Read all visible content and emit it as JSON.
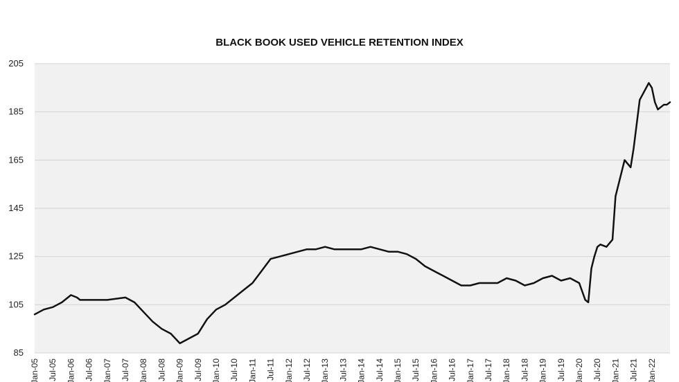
{
  "chart_data": {
    "type": "line",
    "title": "BLACK BOOK USED VEHICLE RETENTION INDEX",
    "xlabel": "",
    "ylabel": "",
    "ylim": [
      85,
      205
    ],
    "yticks": [
      85,
      105,
      125,
      145,
      165,
      185,
      205
    ],
    "ytick_labels": [
      "85",
      "105",
      "125",
      "145",
      "165",
      "185",
      "205"
    ],
    "grid": true,
    "legend": "none",
    "colors": {
      "line": "#111111",
      "plot_bg": "#f1f1f1",
      "grid": "#d4d4d4"
    },
    "xtick_labels": [
      "Jan-05",
      "Jul-05",
      "Jan-06",
      "Jul-06",
      "Jan-07",
      "Jul-07",
      "Jan-08",
      "Jul-08",
      "Jan-09",
      "Jul-09",
      "Jan-10",
      "Jul-10",
      "Jan-11",
      "Jul-11",
      "Jan-12",
      "Jul-12",
      "Jan-13",
      "Jul-13",
      "Jan-14",
      "Jul-14",
      "Jan-15",
      "Jul-15",
      "Jan-16",
      "Jul-16",
      "Jan-17",
      "Jul-17",
      "Jan-18",
      "Jul-18",
      "Jan-19",
      "Jul-19",
      "Jan-20",
      "Jul-20",
      "Jan-21",
      "Jul-21",
      "Jan-22"
    ],
    "series": [
      {
        "x": [
          "Jan-05",
          "Apr-05",
          "Jul-05",
          "Oct-05",
          "Jan-06",
          "Mar-06",
          "Apr-06",
          "Jul-06",
          "Oct-06",
          "Jan-07",
          "Jul-07",
          "Oct-07",
          "Jan-08",
          "Apr-08",
          "Jul-08",
          "Oct-08",
          "Jan-09",
          "Apr-09",
          "Jul-09",
          "Oct-09",
          "Jan-10",
          "Apr-10",
          "Jul-10",
          "Oct-10",
          "Jan-11",
          "Apr-11",
          "Jul-11",
          "Oct-11",
          "Jan-12",
          "Apr-12",
          "Jul-12",
          "Oct-12",
          "Jan-13",
          "Apr-13",
          "Jul-13",
          "Oct-13",
          "Jan-14",
          "Apr-14",
          "Jul-14",
          "Oct-14",
          "Jan-15",
          "Apr-15",
          "Jul-15",
          "Oct-15",
          "Jan-16",
          "Apr-16",
          "Jul-16",
          "Oct-16",
          "Jan-17",
          "Apr-17",
          "Jul-17",
          "Oct-17",
          "Jan-18",
          "Apr-18",
          "Jul-18",
          "Oct-18",
          "Jan-19",
          "Apr-19",
          "Jul-19",
          "Oct-19",
          "Jan-20",
          "Mar-20",
          "Apr-20",
          "May-20",
          "Jun-20",
          "Jul-20",
          "Aug-20",
          "Oct-20",
          "Dec-20",
          "Jan-21",
          "Apr-21",
          "Jun-21",
          "Jul-21",
          "Sep-21",
          "Dec-21",
          "Jan-22",
          "Feb-22",
          "Mar-22",
          "May-22",
          "Jun-22",
          "Jul-22"
        ],
        "y": [
          101,
          103,
          104,
          106,
          109,
          108,
          107,
          107,
          107,
          107,
          108,
          106,
          102,
          98,
          95,
          93,
          89,
          91,
          93,
          99,
          103,
          105,
          108,
          111,
          114,
          119,
          124,
          125,
          126,
          127,
          128,
          128,
          129,
          128,
          128,
          128,
          128,
          129,
          128,
          127,
          127,
          126,
          124,
          121,
          119,
          117,
          115,
          113,
          113,
          114,
          114,
          114,
          116,
          115,
          113,
          114,
          116,
          117,
          115,
          116,
          114,
          107,
          106,
          120,
          125,
          129,
          130,
          129,
          132,
          150,
          165,
          162,
          170,
          190,
          197,
          195,
          189,
          186,
          188,
          188,
          189
        ]
      }
    ]
  }
}
